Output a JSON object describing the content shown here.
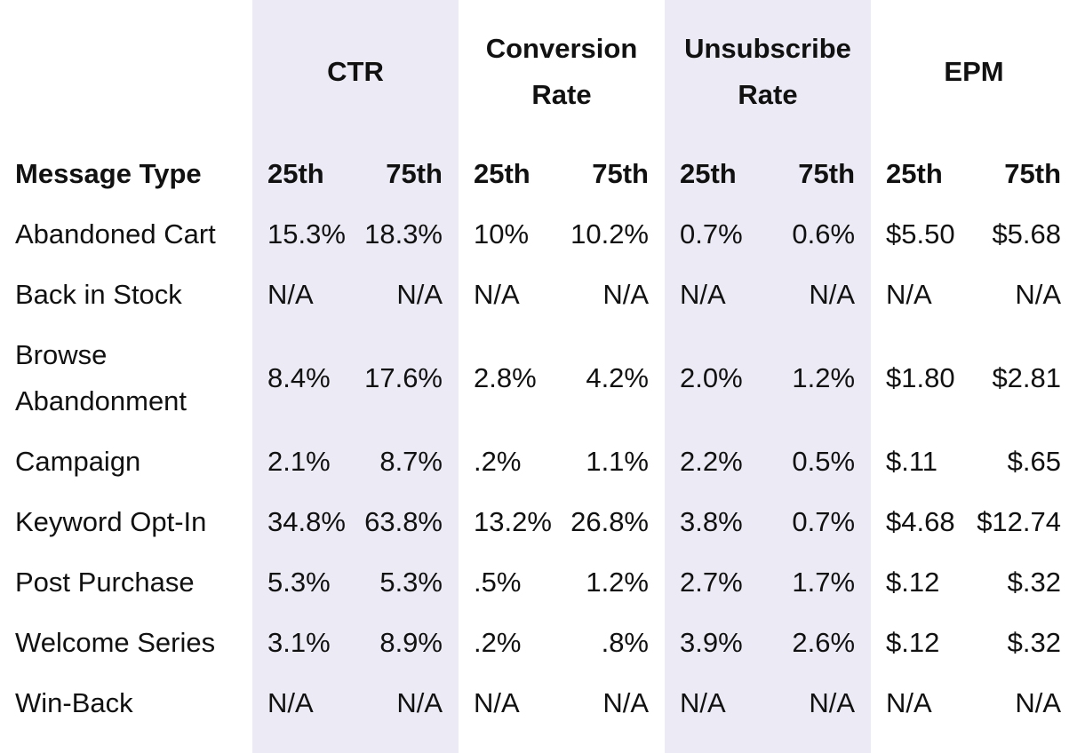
{
  "header": {
    "corner": "Message Type",
    "groups": [
      {
        "label": "CTR",
        "sub": [
          "25th",
          "75th"
        ]
      },
      {
        "label": "Conversion Rate",
        "sub": [
          "25th",
          "75th"
        ]
      },
      {
        "label": "Unsubscribe Rate",
        "sub": [
          "25th",
          "75th"
        ]
      },
      {
        "label": "EPM",
        "sub": [
          "25th",
          "75th"
        ]
      }
    ]
  },
  "rows": [
    {
      "label": "Abandoned Cart",
      "values": [
        "15.3%",
        "18.3%",
        "10%",
        "10.2%",
        "0.7%",
        "0.6%",
        "$5.50",
        "$5.68"
      ]
    },
    {
      "label": "Back in Stock",
      "values": [
        "N/A",
        "N/A",
        "N/A",
        "N/A",
        "N/A",
        "N/A",
        "N/A",
        "N/A"
      ]
    },
    {
      "label": "Browse Abandonment",
      "values": [
        "8.4%",
        "17.6%",
        "2.8%",
        "4.2%",
        "2.0%",
        "1.2%",
        "$1.80",
        "$2.81"
      ]
    },
    {
      "label": "Campaign",
      "values": [
        "2.1%",
        "8.7%",
        ".2%",
        "1.1%",
        "2.2%",
        "0.5%",
        "$.11",
        "$.65"
      ]
    },
    {
      "label": "Keyword Opt-In",
      "values": [
        "34.8%",
        "63.8%",
        "13.2%",
        "26.8%",
        "3.8%",
        "0.7%",
        "$4.68",
        "$12.74"
      ]
    },
    {
      "label": "Post Purchase",
      "values": [
        "5.3%",
        "5.3%",
        ".5%",
        "1.2%",
        "2.7%",
        "1.7%",
        "$.12",
        "$.32"
      ]
    },
    {
      "label": "Welcome Series",
      "values": [
        "3.1%",
        "8.9%",
        ".2%",
        ".8%",
        "3.9%",
        "2.6%",
        "$.12",
        "$.32"
      ]
    },
    {
      "label": "Win-Back",
      "values": [
        "N/A",
        "N/A",
        "N/A",
        "N/A",
        "N/A",
        "N/A",
        "N/A",
        "N/A"
      ]
    }
  ]
}
